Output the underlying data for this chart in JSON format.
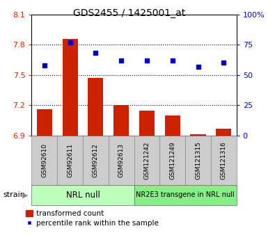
{
  "title": "GDS2455 / 1425001_at",
  "samples": [
    "GSM92610",
    "GSM92611",
    "GSM92612",
    "GSM92613",
    "GSM121242",
    "GSM121249",
    "GSM121315",
    "GSM121316"
  ],
  "bar_values": [
    7.16,
    7.86,
    7.47,
    7.2,
    7.15,
    7.1,
    6.91,
    6.97
  ],
  "percentile_values": [
    58,
    77,
    68,
    62,
    62,
    62,
    57,
    60
  ],
  "bar_color": "#cc2200",
  "dot_color": "#0000cc",
  "bar_bottom": 6.9,
  "ylim_left": [
    6.9,
    8.1
  ],
  "ylim_right": [
    0,
    100
  ],
  "yticks_left": [
    6.9,
    7.2,
    7.5,
    7.8,
    8.1
  ],
  "yticks_right": [
    0,
    25,
    50,
    75,
    100
  ],
  "ytick_labels_left": [
    "6.9",
    "7.2",
    "7.5",
    "7.8",
    "8.1"
  ],
  "ytick_labels_right": [
    "0",
    "25",
    "50",
    "75",
    "100%"
  ],
  "hlines": [
    7.2,
    7.5,
    7.8
  ],
  "groups": [
    {
      "label": "NRL null",
      "color": "#bbffbb",
      "start": 0,
      "end": 3
    },
    {
      "label": "NR2E3 transgene in NRL null",
      "color": "#88ee88",
      "start": 4,
      "end": 7
    }
  ],
  "strain_label": "strain",
  "legend_bar_label": "transformed count",
  "legend_dot_label": "percentile rank within the sample",
  "tick_bg_color": "#cccccc",
  "gap_color": "#ffffff"
}
